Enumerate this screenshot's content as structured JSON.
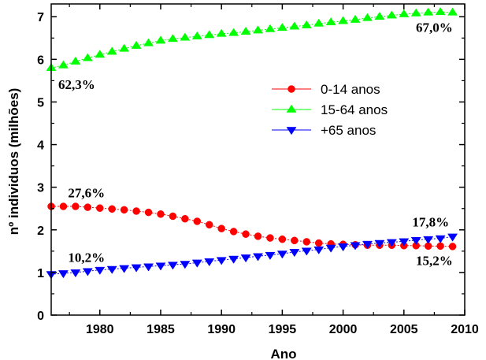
{
  "chart_data": {
    "type": "line",
    "title": "",
    "xlabel": "Ano",
    "ylabel": "nº individuos (milhões)",
    "xlim": [
      1976,
      2010
    ],
    "ylim": [
      0,
      7.3
    ],
    "xticks": [
      1980,
      1985,
      1990,
      1995,
      2000,
      2005,
      2010
    ],
    "yticks": [
      0,
      1,
      2,
      3,
      4,
      5,
      6,
      7
    ],
    "x": [
      1976,
      1977,
      1978,
      1979,
      1980,
      1981,
      1982,
      1983,
      1984,
      1985,
      1986,
      1987,
      1988,
      1989,
      1990,
      1991,
      1992,
      1993,
      1994,
      1995,
      1996,
      1997,
      1998,
      1999,
      2000,
      2001,
      2002,
      2003,
      2004,
      2005,
      2006,
      2007,
      2008,
      2009
    ],
    "series": [
      {
        "name": "0-14 anos",
        "color": "#ff0000",
        "marker": "circle",
        "values": [
          2.55,
          2.55,
          2.55,
          2.53,
          2.51,
          2.49,
          2.47,
          2.44,
          2.41,
          2.37,
          2.32,
          2.26,
          2.2,
          2.12,
          2.03,
          1.96,
          1.9,
          1.85,
          1.81,
          1.78,
          1.75,
          1.72,
          1.69,
          1.67,
          1.66,
          1.65,
          1.64,
          1.64,
          1.64,
          1.63,
          1.63,
          1.62,
          1.62,
          1.61
        ]
      },
      {
        "name": "15-64 anos",
        "color": "#00ff00",
        "marker": "triangle-up",
        "values": [
          5.8,
          5.86,
          5.95,
          6.03,
          6.11,
          6.18,
          6.25,
          6.32,
          6.38,
          6.44,
          6.48,
          6.51,
          6.54,
          6.57,
          6.6,
          6.62,
          6.65,
          6.68,
          6.71,
          6.74,
          6.77,
          6.8,
          6.84,
          6.87,
          6.9,
          6.93,
          6.97,
          7.0,
          7.03,
          7.06,
          7.08,
          7.1,
          7.11,
          7.1
        ]
      },
      {
        "name": "+65 anos",
        "color": "#0000ff",
        "marker": "triangle-down",
        "values": [
          0.96,
          0.98,
          1.0,
          1.03,
          1.06,
          1.08,
          1.1,
          1.12,
          1.14,
          1.16,
          1.18,
          1.2,
          1.23,
          1.26,
          1.29,
          1.32,
          1.35,
          1.38,
          1.41,
          1.44,
          1.48,
          1.51,
          1.54,
          1.58,
          1.61,
          1.64,
          1.67,
          1.69,
          1.71,
          1.73,
          1.76,
          1.78,
          1.8,
          1.84
        ]
      }
    ],
    "annotations": [
      {
        "text": "67,0%",
        "x": 2007.5,
        "y": 6.64
      },
      {
        "text": "62,3%",
        "x": 1978.1,
        "y": 5.3
      },
      {
        "text": "27,6%",
        "x": 1978.9,
        "y": 2.76
      },
      {
        "text": "17,8%",
        "x": 2007.2,
        "y": 2.08
      },
      {
        "text": "10,2%",
        "x": 1978.9,
        "y": 1.25
      },
      {
        "text": "15,2%",
        "x": 2007.5,
        "y": 1.17
      }
    ],
    "legend": {
      "position": "center-right"
    }
  }
}
